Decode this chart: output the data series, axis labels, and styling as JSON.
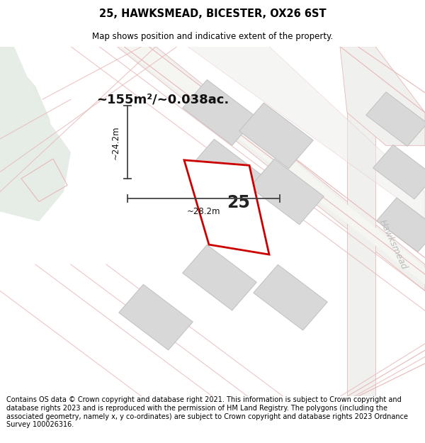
{
  "title_line1": "25, HAWKSMEAD, BICESTER, OX26 6ST",
  "title_line2": "Map shows position and indicative extent of the property.",
  "footer_text": "Contains OS data © Crown copyright and database right 2021. This information is subject to Crown copyright and database rights 2023 and is reproduced with the permission of HM Land Registry. The polygons (including the associated geometry, namely x, y co-ordinates) are subject to Crown copyright and database rights 2023 Ordnance Survey 100026316.",
  "area_label": "~155m²/~0.038ac.",
  "property_number": "25",
  "width_label": "~28.2m",
  "height_label": "~24.2m",
  "street_label": "Hawksmead",
  "bg_color": "#eef2ee",
  "road_fill": "#f8f8f6",
  "road_edge": "#e8b8b8",
  "plot_color": "#cc0000",
  "building_fill": "#d8d8d8",
  "building_edge": "#c0c0c0",
  "green_fill": "#e4ece4",
  "dim_color": "#444444",
  "title_fontsize": 10.5,
  "subtitle_fontsize": 8.5,
  "footer_fontsize": 7.0
}
